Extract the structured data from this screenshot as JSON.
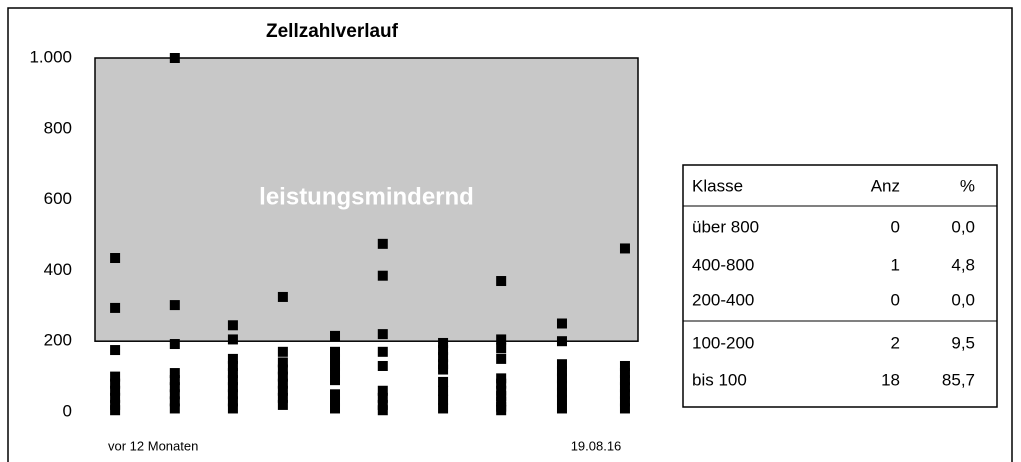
{
  "chart_data": {
    "type": "scatter",
    "title": "Zellzahlverlauf",
    "ylim": [
      0,
      1000
    ],
    "yticks": [
      0,
      200,
      400,
      600,
      800,
      {
        "value": 1000,
        "label": "1.000"
      }
    ],
    "xlim": [
      0,
      10
    ],
    "x_start_label": "vor 12 Monaten",
    "x_end_label": "19.08.16",
    "threshold": 200,
    "zone_label": "leistungsmindernd",
    "zone_color": "#c8c8c8",
    "series": [
      {
        "name": "Zellzahl",
        "color": "#000000",
        "x": [
          0.37,
          0.37,
          0.37,
          0.37,
          0.37,
          0.37,
          0.37,
          0.37,
          0.37,
          1.47,
          1.47,
          1.47,
          1.47,
          1.47,
          1.47,
          1.47,
          1.47,
          1.47,
          2.54,
          2.54,
          2.54,
          2.54,
          2.54,
          2.54,
          2.54,
          2.54,
          2.54,
          2.54,
          3.46,
          3.46,
          3.46,
          3.46,
          3.46,
          3.46,
          3.46,
          3.46,
          3.46,
          4.42,
          4.42,
          4.42,
          4.42,
          4.42,
          4.42,
          4.42,
          4.42,
          4.42,
          5.3,
          5.3,
          5.3,
          5.3,
          5.3,
          5.3,
          5.3,
          5.3,
          5.3,
          6.41,
          6.41,
          6.41,
          6.41,
          6.41,
          6.41,
          6.41,
          6.41,
          6.41,
          7.48,
          7.48,
          7.48,
          7.48,
          7.48,
          7.48,
          7.48,
          7.48,
          7.48,
          7.48,
          7.48,
          8.6,
          8.6,
          8.6,
          8.6,
          8.6,
          8.6,
          8.6,
          8.6,
          8.6,
          9.76,
          9.76,
          9.76,
          9.76,
          9.76,
          9.76,
          9.76,
          9.76
        ],
        "values": [
          435,
          294,
          175,
          100,
          80,
          60,
          40,
          20,
          5,
          1000,
          302,
          192,
          110,
          90,
          70,
          50,
          30,
          10,
          245,
          205,
          150,
          130,
          110,
          90,
          70,
          50,
          30,
          10,
          325,
          170,
          140,
          120,
          100,
          80,
          60,
          40,
          20,
          215,
          170,
          150,
          130,
          110,
          90,
          50,
          30,
          10,
          475,
          385,
          220,
          170,
          130,
          60,
          40,
          20,
          5,
          195,
          175,
          155,
          135,
          120,
          85,
          60,
          35,
          10,
          370,
          205,
          180,
          150,
          95,
          80,
          60,
          45,
          30,
          15,
          5,
          250,
          200,
          135,
          115,
          95,
          75,
          55,
          35,
          10,
          462,
          130,
          110,
          90,
          70,
          50,
          30,
          10
        ]
      }
    ]
  },
  "table": {
    "header": [
      "Klasse",
      "Anz",
      "%"
    ],
    "rows": [
      [
        "über 800",
        "0",
        "0,0"
      ],
      [
        "400-800",
        "1",
        "4,8"
      ],
      [
        "200-400",
        "0",
        "0,0"
      ],
      [
        "100-200",
        "2",
        "9,5"
      ],
      [
        "bis 100",
        "18",
        "85,7"
      ]
    ]
  }
}
